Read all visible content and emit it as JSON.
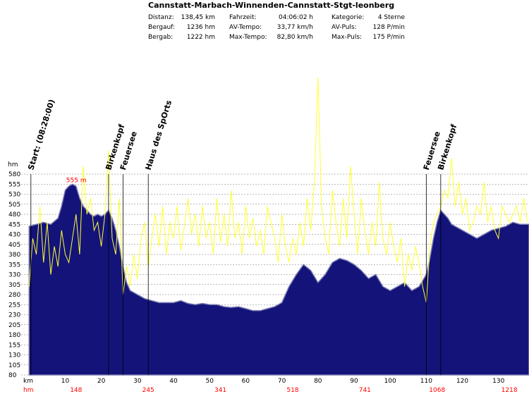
{
  "chart_data": {
    "type": "area",
    "title": "Cannstatt-Marbach-Winnenden-Cannstatt-Stgt-leonberg",
    "stats": [
      {
        "label": "Distanz:",
        "value": "138,45 km"
      },
      {
        "label": "Bergauf:",
        "value": "1236 hm"
      },
      {
        "label": "Bergab:",
        "value": "1222 hm"
      },
      {
        "label": "Fahrzeit:",
        "value": "04:06:02 h"
      },
      {
        "label": "AV-Tempo:",
        "value": "33,77 km/h"
      },
      {
        "label": "Max-Tempo:",
        "value": "82,80 km/h"
      },
      {
        "label": "Kategorie:",
        "value": "4 Sterne"
      },
      {
        "label": "AV-Puls:",
        "value": "128 P/min"
      },
      {
        "label": "Max-Puls:",
        "value": "175 P/min"
      }
    ],
    "xlabel": "km",
    "ylabel": "hm",
    "hm_row_label": "hm",
    "xlim": [
      0,
      138.45
    ],
    "ylim": [
      80,
      580
    ],
    "y_ticks": [
      80,
      105,
      130,
      155,
      180,
      205,
      230,
      255,
      280,
      305,
      330,
      355,
      380,
      405,
      430,
      455,
      480,
      505,
      530,
      555,
      580
    ],
    "x_ticks": [
      10,
      20,
      30,
      40,
      50,
      60,
      70,
      80,
      90,
      100,
      110,
      120,
      130
    ],
    "cumulative_hm": [
      {
        "km": 13,
        "label": "148"
      },
      {
        "km": 33,
        "label": "245"
      },
      {
        "km": 53,
        "label": "341"
      },
      {
        "km": 73,
        "label": "518"
      },
      {
        "km": 93,
        "label": "741"
      },
      {
        "km": 113,
        "label": "1068"
      },
      {
        "km": 133,
        "label": "1218"
      }
    ],
    "peak_label": {
      "km": 13,
      "alt": 555,
      "text": "555 m"
    },
    "markers": [
      {
        "km": 0.5,
        "label": "Start: (08:28:00)"
      },
      {
        "km": 22,
        "label": "Birkenkopf"
      },
      {
        "km": 26,
        "label": "Feuersee"
      },
      {
        "km": 33,
        "label": "Haus des SpOrts"
      },
      {
        "km": 110,
        "label": "Feuersee"
      },
      {
        "km": 114,
        "label": "Birkenkopf"
      }
    ],
    "series": [
      {
        "name": "altitude",
        "x": [
          0,
          2,
          4,
          6,
          8,
          9,
          10,
          11,
          12,
          13,
          14,
          15,
          16,
          17,
          18,
          19,
          20,
          21,
          22,
          23,
          24,
          25,
          26,
          27,
          28,
          29,
          30,
          32,
          34,
          36,
          38,
          40,
          42,
          44,
          46,
          48,
          50,
          52,
          54,
          56,
          58,
          60,
          62,
          64,
          66,
          68,
          70,
          72,
          74,
          76,
          78,
          80,
          82,
          84,
          86,
          88,
          90,
          92,
          94,
          96,
          98,
          100,
          102,
          104,
          106,
          108,
          110,
          111,
          112,
          113,
          114,
          115,
          116,
          117,
          118,
          120,
          122,
          124,
          126,
          128,
          130,
          132,
          134,
          136,
          138.45
        ],
        "values": [
          450,
          455,
          460,
          455,
          470,
          500,
          540,
          550,
          555,
          550,
          520,
          500,
          490,
          480,
          475,
          480,
          475,
          480,
          490,
          470,
          440,
          400,
          350,
          310,
          290,
          285,
          280,
          270,
          265,
          260,
          260,
          260,
          265,
          258,
          255,
          258,
          255,
          255,
          250,
          248,
          250,
          245,
          240,
          240,
          245,
          250,
          260,
          300,
          330,
          355,
          340,
          310,
          330,
          360,
          370,
          365,
          355,
          340,
          320,
          330,
          300,
          290,
          300,
          310,
          290,
          300,
          330,
          370,
          420,
          460,
          490,
          480,
          470,
          455,
          450,
          440,
          430,
          420,
          430,
          440,
          445,
          450,
          460,
          455,
          455
        ]
      },
      {
        "name": "speed",
        "x": [
          0,
          1,
          2,
          3,
          4,
          5,
          6,
          7,
          8,
          9,
          10,
          11,
          12,
          13,
          14,
          15,
          16,
          17,
          18,
          19,
          20,
          21,
          22,
          23,
          24,
          25,
          26,
          27,
          28,
          29,
          30,
          31,
          32,
          33,
          34,
          35,
          36,
          37,
          38,
          39,
          40,
          41,
          42,
          43,
          44,
          45,
          46,
          47,
          48,
          49,
          50,
          51,
          52,
          53,
          54,
          55,
          56,
          57,
          58,
          59,
          60,
          61,
          62,
          63,
          64,
          65,
          66,
          67,
          68,
          69,
          70,
          71,
          72,
          73,
          74,
          75,
          76,
          77,
          78,
          79,
          80,
          81,
          82,
          83,
          84,
          85,
          86,
          87,
          88,
          89,
          90,
          91,
          92,
          93,
          94,
          95,
          96,
          97,
          98,
          99,
          100,
          101,
          102,
          103,
          104,
          105,
          106,
          107,
          108,
          109,
          110,
          111,
          112,
          113,
          114,
          115,
          116,
          117,
          118,
          119,
          120,
          121,
          122,
          123,
          124,
          125,
          126,
          127,
          128,
          129,
          130,
          131,
          132,
          133,
          134,
          135,
          136,
          137,
          138
        ],
        "values": [
          300,
          420,
          380,
          500,
          360,
          460,
          330,
          400,
          350,
          440,
          380,
          360,
          420,
          480,
          380,
          600,
          480,
          520,
          440,
          460,
          400,
          480,
          640,
          420,
          380,
          520,
          280,
          350,
          300,
          380,
          320,
          420,
          460,
          350,
          420,
          480,
          400,
          500,
          380,
          460,
          420,
          500,
          390,
          450,
          520,
          430,
          480,
          400,
          500,
          420,
          460,
          380,
          520,
          410,
          480,
          400,
          540,
          420,
          460,
          380,
          500,
          420,
          470,
          400,
          440,
          380,
          500,
          460,
          420,
          360,
          480,
          400,
          360,
          420,
          380,
          460,
          400,
          520,
          440,
          560,
          820,
          500,
          420,
          380,
          540,
          460,
          400,
          520,
          420,
          600,
          480,
          380,
          520,
          440,
          380,
          460,
          400,
          560,
          420,
          380,
          460,
          400,
          360,
          420,
          300,
          380,
          340,
          400,
          360,
          300,
          260,
          400,
          460,
          480,
          500,
          540,
          520,
          620,
          500,
          560,
          480,
          520,
          440,
          460,
          500,
          480,
          560,
          460,
          500,
          440,
          420,
          500,
          480,
          460,
          480,
          500,
          460,
          520,
          460
        ]
      }
    ],
    "colors": {
      "area_fill": "#13137a",
      "area_edge": "#7a7ab0",
      "speed_line": "#ffff33",
      "grid": "#777777",
      "hm_text": "#ff0000"
    },
    "grid": true
  }
}
